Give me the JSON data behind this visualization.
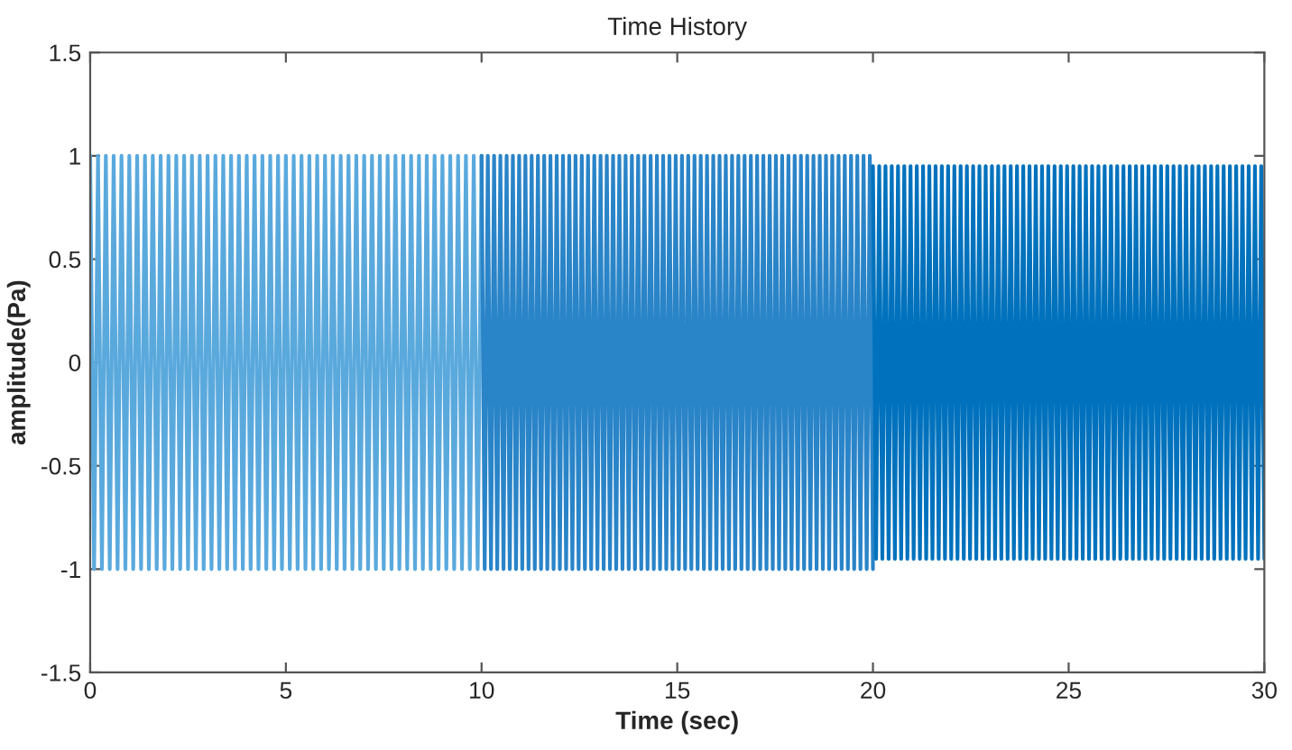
{
  "chart_data": {
    "type": "line",
    "title": "Time History",
    "xlabel": "Time (sec)",
    "ylabel": "amplitude(Pa)",
    "xlim": [
      0,
      30
    ],
    "ylim": [
      -1.5,
      1.5
    ],
    "xticks": [
      0,
      5,
      10,
      15,
      20,
      25,
      30
    ],
    "yticks": [
      -1.5,
      -1,
      -0.5,
      0,
      0.5,
      1,
      1.5
    ],
    "series": [
      {
        "color": "#5aa9dd",
        "x": [
          0,
          0.1,
          0.2,
          0.3,
          0.4,
          0.5,
          0.6,
          0.7,
          0.8,
          0.9,
          1,
          1.1,
          1.2,
          1.3,
          1.4,
          1.5,
          1.6,
          1.7,
          1.8,
          1.9,
          2,
          2.1,
          2.2,
          2.3,
          2.4,
          2.5,
          2.6,
          2.7,
          2.8,
          2.9,
          3,
          3.1,
          3.2,
          3.3,
          3.4,
          3.5,
          3.6,
          3.7,
          3.8,
          3.9,
          4,
          4.1,
          4.2,
          4.3,
          4.4,
          4.5,
          4.6,
          4.7,
          4.8,
          4.9,
          5,
          5.1,
          5.2,
          5.3,
          5.4,
          5.5,
          5.6,
          5.7,
          5.8,
          5.9,
          6,
          6.1,
          6.2,
          6.3,
          6.4,
          6.5,
          6.6,
          6.7,
          6.8,
          6.9,
          7,
          7.1,
          7.2,
          7.3,
          7.4,
          7.5,
          7.6,
          7.7,
          7.8,
          7.9,
          8,
          8.1,
          8.2,
          8.3,
          8.4,
          8.5,
          8.6,
          8.7,
          8.8,
          8.9,
          9,
          9.1,
          9.2,
          9.3,
          9.4,
          9.5,
          9.6,
          9.7,
          9.8,
          9.9,
          10
        ],
        "values": [
          1,
          -1,
          1,
          -1,
          1,
          -1,
          1,
          -1,
          1,
          -1,
          1,
          -1,
          1,
          -1,
          1,
          -1,
          1,
          -1,
          1,
          -1,
          1,
          -1,
          1,
          -1,
          1,
          -1,
          1,
          -1,
          1,
          -1,
          1,
          -1,
          1,
          -1,
          1,
          -1,
          1,
          -1,
          1,
          -1,
          1,
          -1,
          1,
          -1,
          1,
          -1,
          1,
          -1,
          1,
          -1,
          1,
          -1,
          1,
          -1,
          1,
          -1,
          1,
          -1,
          1,
          -1,
          1,
          -1,
          1,
          -1,
          1,
          -1,
          1,
          -1,
          1,
          -1,
          1,
          -1,
          1,
          -1,
          1,
          -1,
          1,
          -1,
          1,
          -1,
          1,
          -1,
          1,
          -1,
          1,
          -1,
          1,
          -1,
          1,
          -1,
          1,
          -1,
          1,
          -1,
          1,
          -1,
          1,
          -1,
          1,
          -1,
          1
        ]
      },
      {
        "color": "#2a84c8",
        "x": [
          10,
          10.08,
          10.16,
          10.24,
          10.32,
          10.4,
          10.48,
          10.56,
          10.64,
          10.72,
          10.8,
          10.88,
          10.96,
          11.04,
          11.12,
          11.2,
          11.28,
          11.36,
          11.44,
          11.52,
          11.6,
          11.68,
          11.76,
          11.84,
          11.92,
          12,
          12.08,
          12.16,
          12.24,
          12.32,
          12.4,
          12.48,
          12.56,
          12.64,
          12.72,
          12.8,
          12.88,
          12.96,
          13.04,
          13.12,
          13.2,
          13.28,
          13.36,
          13.44,
          13.52,
          13.6,
          13.68,
          13.76,
          13.84,
          13.92,
          14,
          14.08,
          14.16,
          14.24,
          14.32,
          14.4,
          14.48,
          14.56,
          14.64,
          14.72,
          14.8,
          14.88,
          14.96,
          15.04,
          15.12,
          15.2,
          15.28,
          15.36,
          15.44,
          15.52,
          15.6,
          15.68,
          15.76,
          15.84,
          15.92,
          16,
          16.08,
          16.16,
          16.24,
          16.32,
          16.4,
          16.48,
          16.56,
          16.64,
          16.72,
          16.8,
          16.88,
          16.96,
          17.04,
          17.12,
          17.2,
          17.28,
          17.36,
          17.44,
          17.52,
          17.6,
          17.68,
          17.76,
          17.84,
          17.92,
          18,
          18.08,
          18.16,
          18.24,
          18.32,
          18.4,
          18.48,
          18.56,
          18.64,
          18.72,
          18.8,
          18.88,
          18.96,
          19.04,
          19.12,
          19.2,
          19.28,
          19.36,
          19.44,
          19.52,
          19.6,
          19.68,
          19.76,
          19.84,
          19.92,
          20
        ],
        "values": [
          1,
          -1,
          1,
          -1,
          1,
          -1,
          1,
          -1,
          1,
          -1,
          1,
          -1,
          1,
          -1,
          1,
          -1,
          1,
          -1,
          1,
          -1,
          1,
          -1,
          1,
          -1,
          1,
          -1,
          1,
          -1,
          1,
          -1,
          1,
          -1,
          1,
          -1,
          1,
          -1,
          1,
          -1,
          1,
          -1,
          1,
          -1,
          1,
          -1,
          1,
          -1,
          1,
          -1,
          1,
          -1,
          1,
          -1,
          1,
          -1,
          1,
          -1,
          1,
          -1,
          1,
          -1,
          1,
          -1,
          1,
          -1,
          1,
          -1,
          1,
          -1,
          1,
          -1,
          1,
          -1,
          1,
          -1,
          1,
          -1,
          1,
          -1,
          1,
          -1,
          1,
          -1,
          1,
          -1,
          1,
          -1,
          1,
          -1,
          1,
          -1,
          1,
          -1,
          1,
          -1,
          1,
          -1,
          1,
          -1,
          1,
          -1,
          1,
          -1,
          1,
          -1,
          1,
          -1,
          1,
          -1,
          1,
          -1,
          1,
          -1,
          1,
          -1,
          1,
          -1,
          1,
          -1,
          1,
          -1,
          1,
          -1,
          1,
          -1,
          1,
          -1
        ]
      },
      {
        "color": "#0072bd",
        "x": [
          20,
          20.08,
          20.16,
          20.24,
          20.32,
          20.4,
          20.48,
          20.56,
          20.64,
          20.72,
          20.8,
          20.88,
          20.96,
          21.04,
          21.12,
          21.2,
          21.28,
          21.36,
          21.44,
          21.52,
          21.6,
          21.68,
          21.76,
          21.84,
          21.92,
          22,
          22.08,
          22.16,
          22.24,
          22.32,
          22.4,
          22.48,
          22.56,
          22.64,
          22.72,
          22.8,
          22.88,
          22.96,
          23.04,
          23.12,
          23.2,
          23.28,
          23.36,
          23.44,
          23.52,
          23.6,
          23.68,
          23.76,
          23.84,
          23.92,
          24,
          24.08,
          24.16,
          24.24,
          24.32,
          24.4,
          24.48,
          24.56,
          24.64,
          24.72,
          24.8,
          24.88,
          24.96,
          25.04,
          25.12,
          25.2,
          25.28,
          25.36,
          25.44,
          25.52,
          25.6,
          25.68,
          25.76,
          25.84,
          25.92,
          26,
          26.08,
          26.16,
          26.24,
          26.32,
          26.4,
          26.48,
          26.56,
          26.64,
          26.72,
          26.8,
          26.88,
          26.96,
          27.04,
          27.12,
          27.2,
          27.28,
          27.36,
          27.44,
          27.52,
          27.6,
          27.68,
          27.76,
          27.84,
          27.92,
          28,
          28.08,
          28.16,
          28.24,
          28.32,
          28.4,
          28.48,
          28.56,
          28.64,
          28.72,
          28.8,
          28.88,
          28.96,
          29.04,
          29.12,
          29.2,
          29.28,
          29.36,
          29.44,
          29.52,
          29.6,
          29.68,
          29.76,
          29.84,
          29.92,
          30
        ],
        "values": [
          0.95,
          -0.95,
          0.95,
          -0.95,
          0.95,
          -0.95,
          0.95,
          -0.95,
          0.95,
          -0.95,
          0.95,
          -0.95,
          0.95,
          -0.95,
          0.95,
          -0.95,
          0.95,
          -0.95,
          0.95,
          -0.95,
          0.95,
          -0.95,
          0.95,
          -0.95,
          0.95,
          -0.95,
          0.95,
          -0.95,
          0.95,
          -0.95,
          0.95,
          -0.95,
          0.95,
          -0.95,
          0.95,
          -0.95,
          0.95,
          -0.95,
          0.95,
          -0.95,
          0.95,
          -0.95,
          0.95,
          -0.95,
          0.95,
          -0.95,
          0.95,
          -0.95,
          0.95,
          -0.95,
          0.95,
          -0.95,
          0.95,
          -0.95,
          0.95,
          -0.95,
          0.95,
          -0.95,
          0.95,
          -0.95,
          0.95,
          -0.95,
          0.95,
          -0.95,
          0.95,
          -0.95,
          0.95,
          -0.95,
          0.95,
          -0.95,
          0.95,
          -0.95,
          0.95,
          -0.95,
          0.95,
          -0.95,
          0.95,
          -0.95,
          0.95,
          -0.95,
          0.95,
          -0.95,
          0.95,
          -0.95,
          0.95,
          -0.95,
          0.95,
          -0.95,
          0.95,
          -0.95,
          0.95,
          -0.95,
          0.95,
          -0.95,
          0.95,
          -0.95,
          0.95,
          -0.95,
          0.95,
          -0.95,
          0.95,
          -0.95,
          0.95,
          -0.95,
          0.95,
          -0.95,
          0.95,
          -0.95,
          0.95,
          -0.95,
          0.95,
          -0.95,
          0.95,
          -0.95,
          0.95,
          -0.95,
          0.95,
          -0.95,
          0.95,
          -0.95,
          0.95,
          -0.95,
          0.95,
          -0.95,
          0.95,
          -0.95
        ]
      }
    ]
  }
}
